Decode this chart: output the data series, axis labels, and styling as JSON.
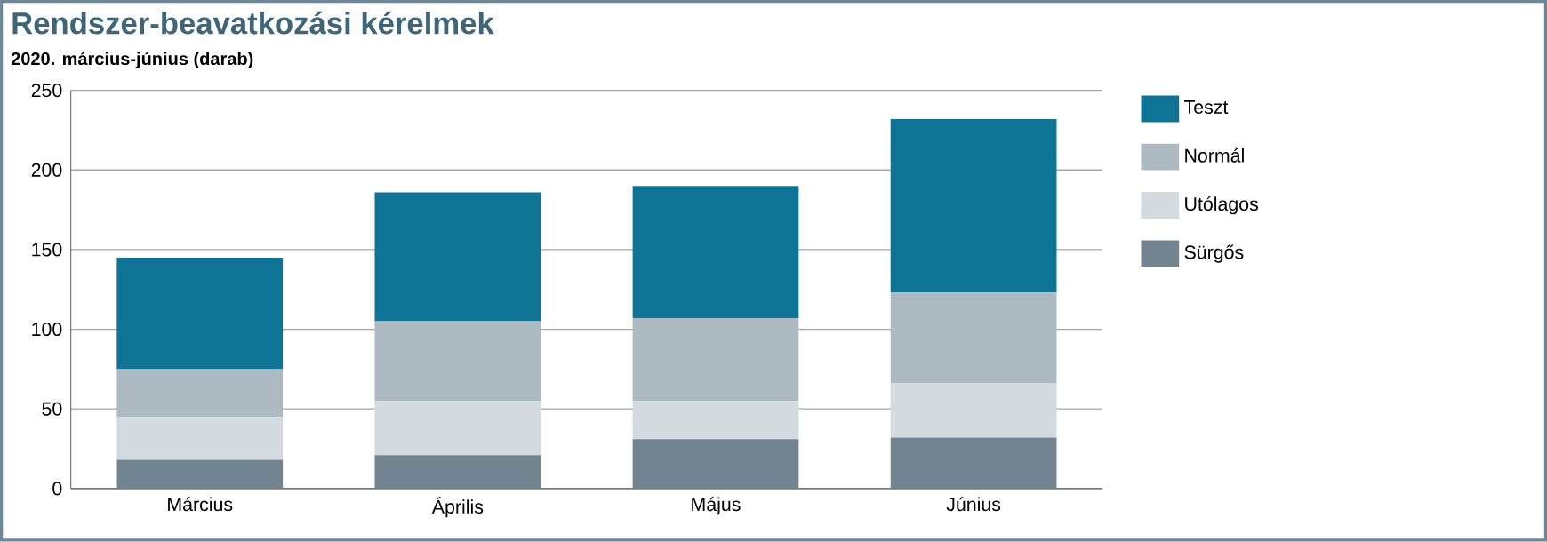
{
  "chart_data": {
    "type": "bar",
    "title": "Rendszer-beavatkozási kérelmek",
    "subtitle": "2020. március-június (darab)",
    "categories": [
      "Március",
      "Április",
      "Május",
      "Június"
    ],
    "stacked": true,
    "series": [
      {
        "name": "Sürgős",
        "color": "#72848f",
        "values": [
          18,
          21,
          31,
          32
        ]
      },
      {
        "name": "Utólagos",
        "color": "#d3dbe1",
        "values": [
          27,
          34,
          24,
          34
        ]
      },
      {
        "name": "Normál",
        "color": "#adbac2",
        "values": [
          30,
          50,
          52,
          57
        ]
      },
      {
        "name": "Teszt",
        "color": "#0e7394",
        "values": [
          70,
          81,
          83,
          109
        ]
      }
    ],
    "ylim": [
      0,
      250
    ],
    "yticks": [
      0,
      50,
      100,
      150,
      200,
      250
    ],
    "grid": "y",
    "legend": "right"
  }
}
